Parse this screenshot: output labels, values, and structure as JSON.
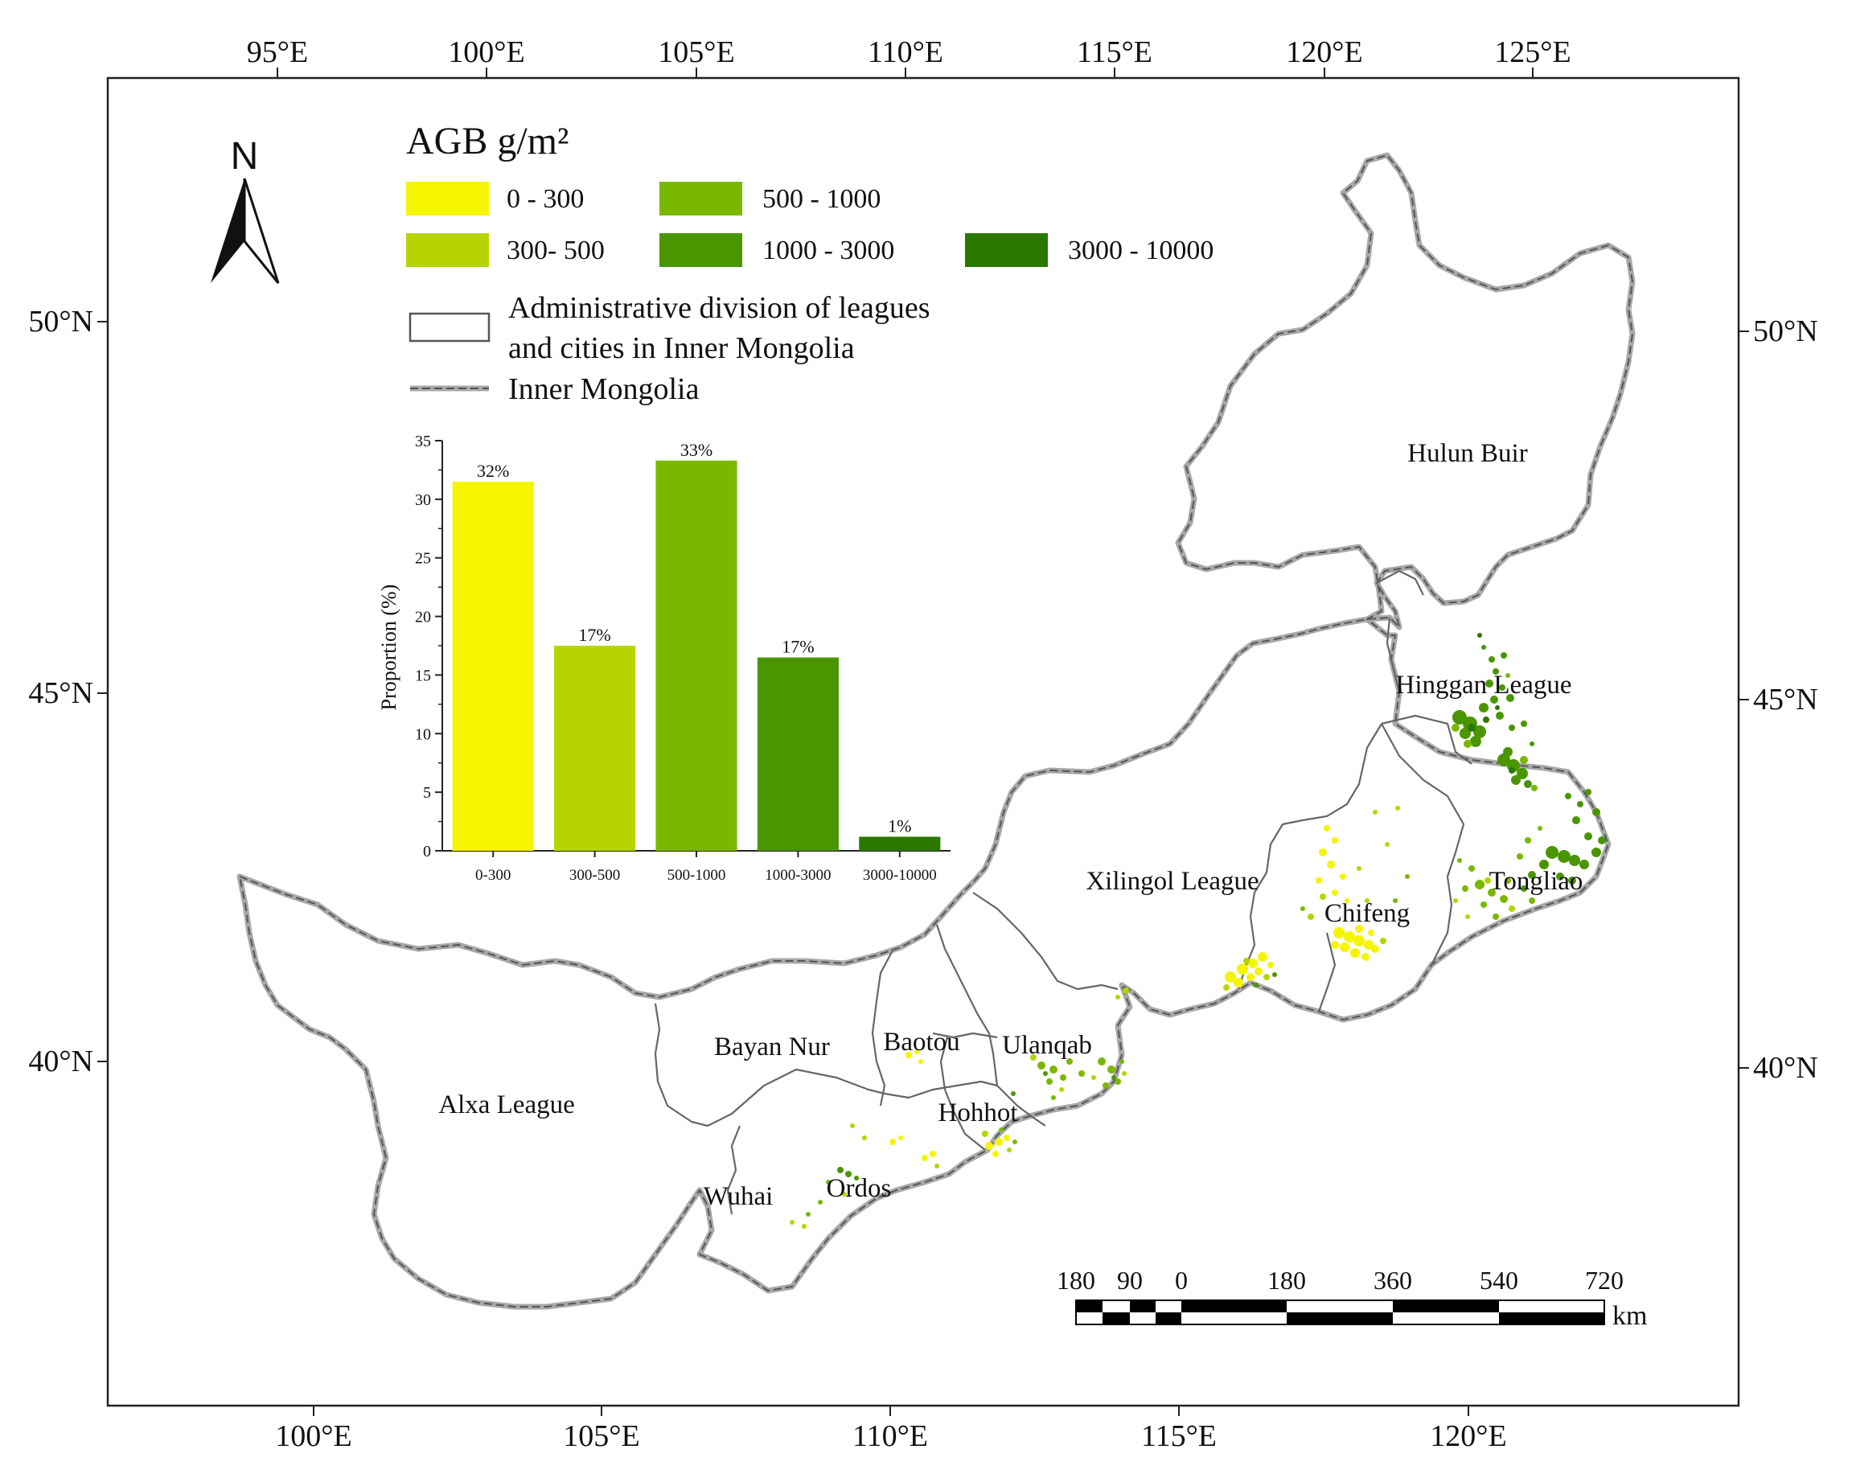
{
  "legend": {
    "title": "AGB g/m²",
    "classes": [
      {
        "label": "0 - 300",
        "color": "#f5f500"
      },
      {
        "label": "300- 500",
        "color": "#b8d400"
      },
      {
        "label": "500 - 1000",
        "color": "#7ab800"
      },
      {
        "label": "1000 - 3000",
        "color": "#4a9600"
      },
      {
        "label": "3000 - 10000",
        "color": "#2a7800"
      }
    ],
    "admin_label_line1": "Administrative division of  leagues",
    "admin_label_line2": "and cities in Inner Mongolia",
    "boundary_label": "Inner Mongolia"
  },
  "north_arrow": {
    "label": "N"
  },
  "axes": {
    "top_lon": [
      "95°E",
      "100°E",
      "105°E",
      "110°E",
      "115°E",
      "120°E",
      "125°E"
    ],
    "bottom_lon": [
      "100°E",
      "105°E",
      "110°E",
      "115°E",
      "120°E"
    ],
    "left_lat": [
      "50°N",
      "45°N",
      "40°N"
    ],
    "right_lat": [
      "50°N",
      "45°N",
      "40°N"
    ]
  },
  "regions": {
    "hulun_buir": "Hulun Buir",
    "hinggan": "Hinggan League",
    "xilingol": "Xilingol League",
    "chifeng": "Chifeng",
    "tongliao": "Tongliao",
    "ulanqab": "Ulanqab",
    "baotou": "Baotou",
    "bayan_nur": "Bayan Nur",
    "hohhot": "Hohhot",
    "alxa": "Alxa League",
    "wuhai": "Wuhai",
    "ordos": "Ordos"
  },
  "scale_bar": {
    "labels": [
      "180",
      "90",
      "0",
      "180",
      "360",
      "540",
      "720"
    ],
    "unit": "km"
  },
  "chart_data": {
    "type": "bar",
    "categories": [
      "0-300",
      "300-500",
      "500-1000",
      "1000-3000",
      "3000-10000"
    ],
    "values": [
      31.5,
      17.5,
      33.3,
      16.5,
      1.2
    ],
    "data_labels": [
      "32%",
      "17%",
      "33%",
      "17%",
      "1%"
    ],
    "colors": [
      "#f5f500",
      "#b8d400",
      "#7ab800",
      "#4a9600",
      "#2a7800"
    ],
    "ylabel": "Proportion (%)",
    "ylim": [
      0,
      35
    ],
    "yticks": [
      "0",
      "5",
      "10",
      "15",
      "20",
      "25",
      "30",
      "35"
    ]
  }
}
